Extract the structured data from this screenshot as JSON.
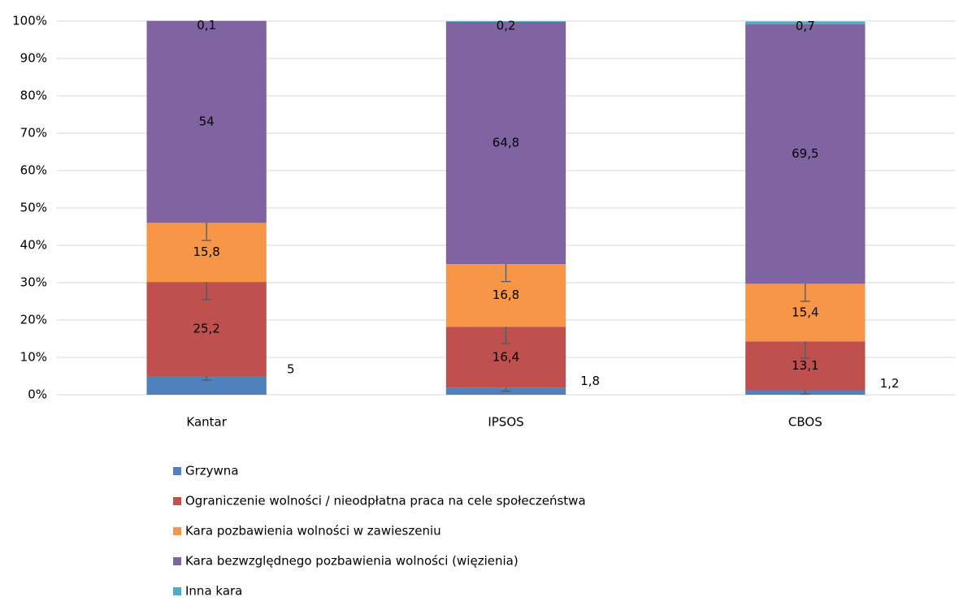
{
  "chart_data": {
    "type": "stacked_bar",
    "categories": [
      "Kantar",
      "IPSOS",
      "CBOS"
    ],
    "ylim": [
      0,
      100
    ],
    "yticks": [
      {
        "value": 0,
        "label": "0%"
      },
      {
        "value": 10,
        "label": "10%"
      },
      {
        "value": 20,
        "label": "20%"
      },
      {
        "value": 30,
        "label": "30%"
      },
      {
        "value": 40,
        "label": "40%"
      },
      {
        "value": 50,
        "label": "50%"
      },
      {
        "value": 60,
        "label": "60%"
      },
      {
        "value": 70,
        "label": "70%"
      },
      {
        "value": 80,
        "label": "80%"
      },
      {
        "value": 90,
        "label": "90%"
      },
      {
        "value": 100,
        "label": "100%"
      }
    ],
    "grid": true,
    "series": [
      {
        "name": "Grzywna",
        "color": "#4f81bd",
        "values": [
          5,
          1.8,
          1.2
        ],
        "value_labels": [
          "5",
          "1,8",
          "1,2"
        ],
        "errors": [
          1.1,
          0.9,
          1.0
        ]
      },
      {
        "name": "Ograniczenie wolności / nieodpłatna praca na cele społeczeństwa",
        "color": "#c0504d",
        "values": [
          25.2,
          16.4,
          13.1
        ],
        "value_labels": [
          "25,2",
          "16,4",
          "13,1"
        ],
        "errors": [
          4.7,
          4.5,
          4.5
        ]
      },
      {
        "name": "Kara pozbawienia wolności w zawieszeniu",
        "color": "#f79646",
        "values": [
          15.8,
          16.8,
          15.4
        ],
        "value_labels": [
          "15,8",
          "16,8",
          "15,4"
        ],
        "errors": [
          4.7,
          4.7,
          4.7
        ]
      },
      {
        "name": "Kara bezwzględnego pozbawienia wolności (więzienia)",
        "color": "#8064a2",
        "values": [
          54,
          64.8,
          69.5
        ],
        "value_labels": [
          "54",
          "64,8",
          "69,5"
        ]
      },
      {
        "name": "Inna kara",
        "color": "#4bacc6",
        "values": [
          0.1,
          0.2,
          0.7
        ],
        "value_labels": [
          "0,1",
          "0,2",
          "0,7"
        ]
      }
    ]
  }
}
